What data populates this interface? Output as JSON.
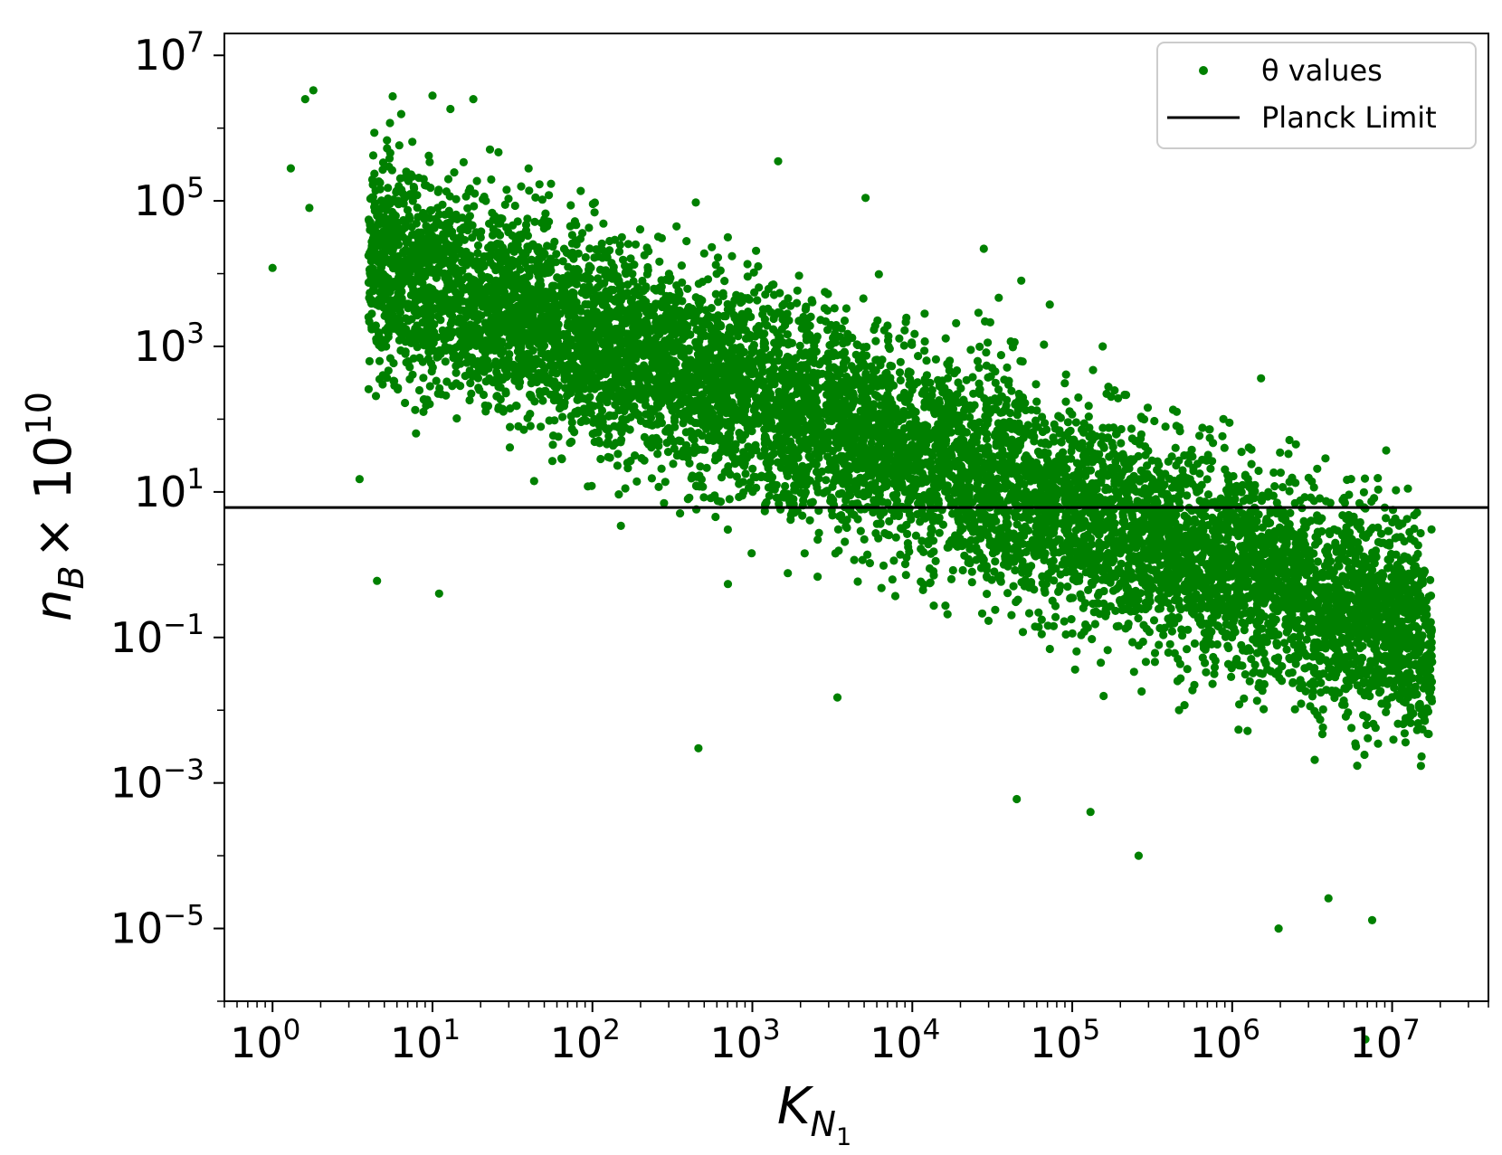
{
  "chart_data": {
    "type": "scatter",
    "x_scale": "log",
    "y_scale": "log",
    "xlim": [
      0.5,
      40000000
    ],
    "ylim": [
      1e-06,
      20000000
    ],
    "grid": false,
    "legend_position": "top-right",
    "xlabel_base": "K",
    "xlabel_sub": "N",
    "xlabel_subsub": "1",
    "ylabel": "n_B × 10^10",
    "ylabel_base": "n",
    "ylabel_sub": "B",
    "ylabel_times": "× 10",
    "ylabel_exp": "10",
    "x_ticks": [
      {
        "base": "10",
        "exp": "0",
        "value": 1
      },
      {
        "base": "10",
        "exp": "1",
        "value": 10
      },
      {
        "base": "10",
        "exp": "2",
        "value": 100
      },
      {
        "base": "10",
        "exp": "3",
        "value": 1000
      },
      {
        "base": "10",
        "exp": "4",
        "value": 10000
      },
      {
        "base": "10",
        "exp": "5",
        "value": 100000
      },
      {
        "base": "10",
        "exp": "6",
        "value": 1000000
      },
      {
        "base": "10",
        "exp": "7",
        "value": 10000000
      }
    ],
    "y_ticks": [
      {
        "base": "10",
        "exp": "7",
        "value": 10000000
      },
      {
        "base": "10",
        "exp": "5",
        "value": 100000
      },
      {
        "base": "10",
        "exp": "3",
        "value": 1000
      },
      {
        "base": "10",
        "exp": "1",
        "value": 10
      },
      {
        "base": "10",
        "exp": "−1",
        "value": 0.1
      },
      {
        "base": "10",
        "exp": "−3",
        "value": 0.001
      },
      {
        "base": "10",
        "exp": "−5",
        "value": 1e-05
      }
    ],
    "series": [
      {
        "name": "θ values",
        "kind": "scatter",
        "color": "#008000",
        "trend": {
          "log10_x_range": [
            0.6,
            7.25
          ],
          "log10_y_at_log10x_1": 3.9,
          "slope": -0.79,
          "spread_sd_log10": 0.72,
          "count": 9000
        },
        "outliers": [
          {
            "x": 1.0,
            "y": 12000
          },
          {
            "x": 1.3,
            "y": 280000
          },
          {
            "x": 1.6,
            "y": 2500000
          },
          {
            "x": 1.8,
            "y": 3300000
          },
          {
            "x": 1.7,
            "y": 80000
          },
          {
            "x": 3.5,
            "y": 15
          },
          {
            "x": 4.5,
            "y": 0.6
          },
          {
            "x": 11,
            "y": 0.4
          },
          {
            "x": 10,
            "y": 2800000
          },
          {
            "x": 18,
            "y": 2500000
          },
          {
            "x": 460,
            "y": 0.003
          },
          {
            "x": 1450,
            "y": 350000
          },
          {
            "x": 3400,
            "y": 0.015
          },
          {
            "x": 5100,
            "y": 110000
          },
          {
            "x": 28000,
            "y": 22000
          },
          {
            "x": 48000,
            "y": 8000
          },
          {
            "x": 155000,
            "y": 1000
          },
          {
            "x": 45000,
            "y": 0.0006
          },
          {
            "x": 130000,
            "y": 0.0004
          },
          {
            "x": 260000,
            "y": 0.0001
          },
          {
            "x": 1950000,
            "y": 1e-05
          },
          {
            "x": 7500000,
            "y": 1.3e-05
          },
          {
            "x": 6800000,
            "y": 3e-07
          },
          {
            "x": 4000000,
            "y": 2.6e-05
          },
          {
            "x": 1250000,
            "y": 8
          },
          {
            "x": 2500000,
            "y": 45
          }
        ]
      },
      {
        "name": "Planck Limit",
        "kind": "hline",
        "y": 6.1,
        "color": "#000000"
      }
    ]
  }
}
